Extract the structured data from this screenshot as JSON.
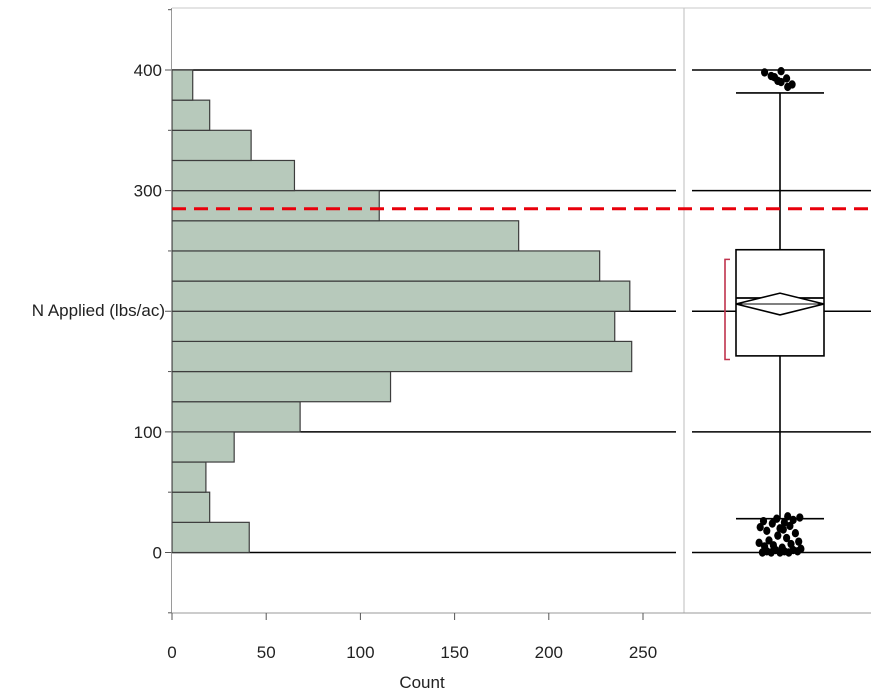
{
  "chart_data": {
    "type": "histogram",
    "orientation": "horizontal",
    "ylabel": "N Applied (lbs/ac)",
    "xlabel": "Count",
    "y_axis": {
      "min": -50,
      "max": 450,
      "ticks": [
        0,
        100,
        300,
        400
      ],
      "minor_step": 50
    },
    "x_axis": {
      "min": 0,
      "max": 270,
      "ticks": [
        0,
        50,
        100,
        150,
        200,
        250
      ]
    },
    "grid_lines_y": [
      0,
      100,
      200,
      300,
      400
    ],
    "bin_width": 25,
    "bins": [
      {
        "low": 0,
        "high": 25,
        "count": 41
      },
      {
        "low": 25,
        "high": 50,
        "count": 20
      },
      {
        "low": 50,
        "high": 75,
        "count": 18
      },
      {
        "low": 75,
        "high": 100,
        "count": 33
      },
      {
        "low": 100,
        "high": 125,
        "count": 68
      },
      {
        "low": 125,
        "high": 150,
        "count": 116
      },
      {
        "low": 150,
        "high": 175,
        "count": 244
      },
      {
        "low": 175,
        "high": 200,
        "count": 235
      },
      {
        "low": 200,
        "high": 225,
        "count": 243
      },
      {
        "low": 225,
        "high": 250,
        "count": 227
      },
      {
        "low": 250,
        "high": 275,
        "count": 184
      },
      {
        "low": 275,
        "high": 300,
        "count": 110
      },
      {
        "low": 300,
        "high": 325,
        "count": 65
      },
      {
        "low": 325,
        "high": 350,
        "count": 42
      },
      {
        "low": 350,
        "high": 375,
        "count": 20
      },
      {
        "low": 375,
        "high": 400,
        "count": 11
      }
    ],
    "reference_line": {
      "value": 285,
      "color": "#e8000b",
      "style": "dashed"
    },
    "boxplot": {
      "q1": 163,
      "median": 211,
      "q3": 251,
      "whisker_low": 28,
      "whisker_high": 381,
      "mean": 206,
      "mean_ci": [
        197,
        215
      ],
      "shortest_half": [
        160,
        243
      ],
      "outliers_high": [
        {
          "v": 398,
          "j": -0.7
        },
        {
          "v": 395,
          "j": -0.4
        },
        {
          "v": 391,
          "j": -0.1
        },
        {
          "v": 399,
          "j": 0.05
        },
        {
          "v": 393,
          "j": 0.3
        },
        {
          "v": 388,
          "j": 0.55
        },
        {
          "v": 390,
          "j": 0.05
        },
        {
          "v": 394,
          "j": -0.25
        },
        {
          "v": 386,
          "j": 0.35
        }
      ],
      "outliers_low": [
        {
          "v": 0,
          "j": -0.8
        },
        {
          "v": 1,
          "j": -0.6
        },
        {
          "v": 0,
          "j": -0.4
        },
        {
          "v": 2,
          "j": -0.2
        },
        {
          "v": 0,
          "j": 0.0
        },
        {
          "v": 1,
          "j": 0.2
        },
        {
          "v": 0,
          "j": 0.4
        },
        {
          "v": 2,
          "j": 0.6
        },
        {
          "v": 1,
          "j": 0.8
        },
        {
          "v": 5,
          "j": -0.7
        },
        {
          "v": 6,
          "j": -0.3
        },
        {
          "v": 4,
          "j": 0.1
        },
        {
          "v": 7,
          "j": 0.5
        },
        {
          "v": 9,
          "j": 0.85
        },
        {
          "v": 10,
          "j": -0.5
        },
        {
          "v": 12,
          "j": 0.3
        },
        {
          "v": 14,
          "j": -0.1
        },
        {
          "v": 16,
          "j": 0.7
        },
        {
          "v": 18,
          "j": -0.6
        },
        {
          "v": 20,
          "j": 0.0
        },
        {
          "v": 22,
          "j": 0.45
        },
        {
          "v": 24,
          "j": -0.35
        },
        {
          "v": 25,
          "j": 0.2
        },
        {
          "v": 26,
          "j": -0.75
        },
        {
          "v": 27,
          "j": 0.6
        },
        {
          "v": 28,
          "j": -0.15
        },
        {
          "v": 29,
          "j": 0.9
        },
        {
          "v": 30,
          "j": 0.35
        },
        {
          "v": 21,
          "j": -0.9
        },
        {
          "v": 19,
          "j": 0.15
        },
        {
          "v": 3,
          "j": 0.95
        },
        {
          "v": 8,
          "j": -0.95
        }
      ]
    },
    "colors": {
      "bar_fill": "#b7c9bb",
      "bar_stroke": "#3d3d3d",
      "grid": "#000000",
      "box": "#000000",
      "shortest_half": "#c0334d",
      "frame": "#c8c8c8",
      "points": "#000000"
    }
  }
}
